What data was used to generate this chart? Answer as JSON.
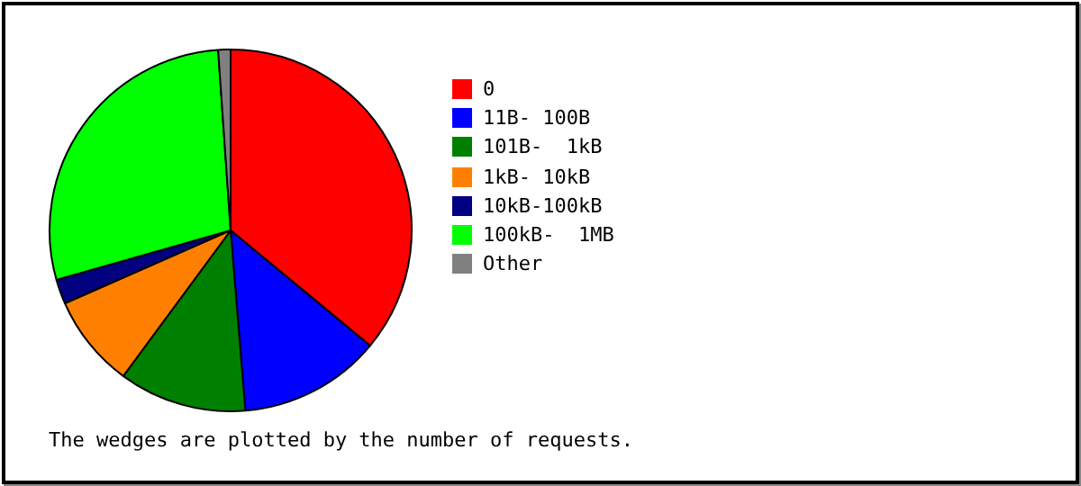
{
  "chart_data": {
    "type": "pie",
    "categories": [
      "0",
      "11B- 100B",
      "101B-  1kB",
      "1kB- 10kB",
      "10kB-100kB",
      "100kB-  1MB",
      "Other"
    ],
    "values": [
      36,
      12.7,
      11.4,
      8.3,
      2.2,
      28.3,
      1.1
    ],
    "colors": [
      "#ff0000",
      "#0000ff",
      "#008000",
      "#ff8000",
      "#000080",
      "#00ff00",
      "#808080"
    ],
    "legend": "right",
    "annotations": [
      "The wedges are plotted by the number of requests."
    ]
  }
}
